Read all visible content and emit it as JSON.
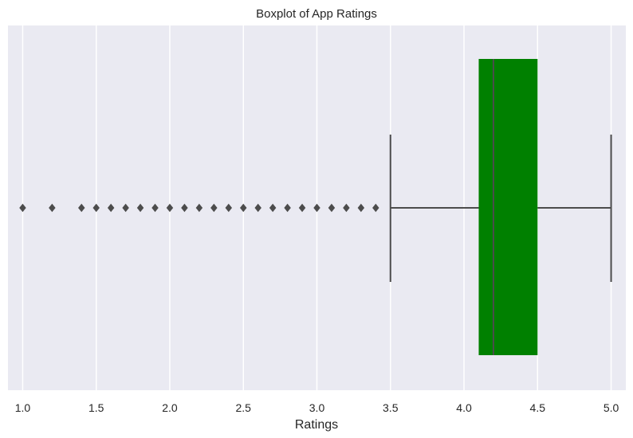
{
  "chart_data": {
    "type": "box",
    "title": "Boxplot of App Ratings",
    "xlabel": "Ratings",
    "ylabel": "",
    "orientation": "horizontal",
    "xlim": [
      0.9,
      5.1
    ],
    "xticks": [
      "1.0",
      "1.5",
      "2.0",
      "2.5",
      "3.0",
      "3.5",
      "4.0",
      "4.5",
      "5.0"
    ],
    "grid": true,
    "box": {
      "whisker_low": 3.5,
      "q1": 4.1,
      "median": 4.2,
      "q3": 4.5,
      "whisker_high": 5.0
    },
    "outliers": [
      1.0,
      1.2,
      1.4,
      1.5,
      1.6,
      1.7,
      1.8,
      1.9,
      2.0,
      2.1,
      2.2,
      2.3,
      2.4,
      2.5,
      2.6,
      2.7,
      2.8,
      2.9,
      3.0,
      3.1,
      3.2,
      3.3,
      3.4
    ],
    "colors": {
      "box_fill": "#008000",
      "lines": "#4c4c4c",
      "background": "#eaeaf2",
      "grid": "#ffffff"
    }
  }
}
